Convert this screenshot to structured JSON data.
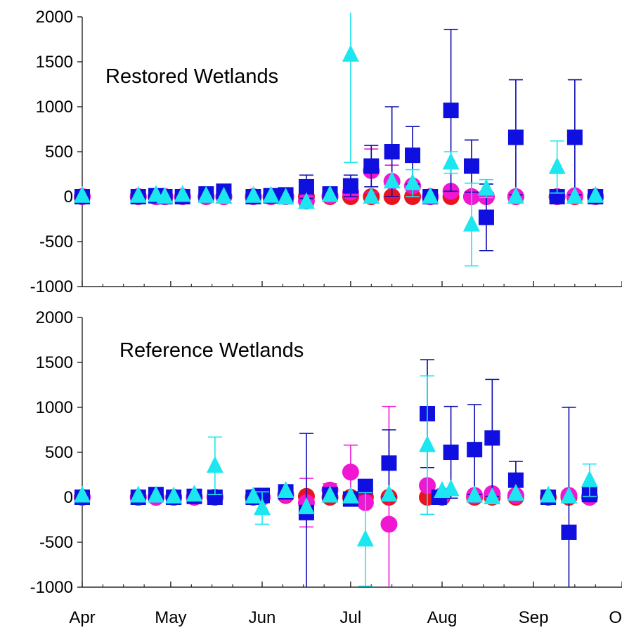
{
  "chart_data": [
    {
      "type": "scatter",
      "title": "Restored Wetlands",
      "xlabel": "",
      "ylabel": "",
      "ylim": [
        -1000,
        2000
      ],
      "yticks": [
        -1000,
        -500,
        0,
        500,
        1000,
        1500,
        2000
      ],
      "xlim": [
        "Apr",
        "Oct"
      ],
      "grid": false,
      "series": [
        {
          "color": "#e8141e",
          "marker": "circle",
          "points": [
            {
              "x": "Apr 1",
              "y": 0
            },
            {
              "x": "Apr 20",
              "y": 0
            },
            {
              "x": "Apr 26",
              "y": 0
            },
            {
              "x": "Apr 29",
              "y": 0
            },
            {
              "x": "May 5",
              "y": 0
            },
            {
              "x": "May 13",
              "y": 0
            },
            {
              "x": "May 19",
              "y": 0
            },
            {
              "x": "May 29",
              "y": 0
            },
            {
              "x": "Jun 4",
              "y": 0
            },
            {
              "x": "Jun 9",
              "y": 0
            },
            {
              "x": "Jun 16",
              "y": 0
            },
            {
              "x": "Jun 24",
              "y": 0
            },
            {
              "x": "Jul 1",
              "y": 0
            },
            {
              "x": "Jul 8",
              "y": 0
            },
            {
              "x": "Jul 15",
              "y": 0
            },
            {
              "x": "Jul 22",
              "y": 0
            },
            {
              "x": "Jul 28",
              "y": 0
            },
            {
              "x": "Aug 4",
              "y": 0
            },
            {
              "x": "Aug 11",
              "y": 0
            },
            {
              "x": "Aug 16",
              "y": 0
            },
            {
              "x": "Aug 26",
              "y": 0
            },
            {
              "x": "Sep 9",
              "y": 0
            },
            {
              "x": "Sep 15",
              "y": 0
            },
            {
              "x": "Sep 22",
              "y": 0
            }
          ]
        },
        {
          "color": "#f016d2",
          "marker": "circle",
          "points": [
            {
              "x": "Apr 1",
              "y": 0
            },
            {
              "x": "Apr 20",
              "y": 0
            },
            {
              "x": "Apr 26",
              "y": 0
            },
            {
              "x": "Apr 29",
              "y": 0
            },
            {
              "x": "May 5",
              "y": 0
            },
            {
              "x": "May 13",
              "y": 0
            },
            {
              "x": "May 19",
              "y": 0
            },
            {
              "x": "May 29",
              "y": 0
            },
            {
              "x": "Jun 4",
              "y": 0
            },
            {
              "x": "Jun 9",
              "y": 0
            },
            {
              "x": "Jun 16",
              "y": -50
            },
            {
              "x": "Jun 24",
              "y": 10
            },
            {
              "x": "Jul 1",
              "y": 50
            },
            {
              "x": "Jul 8",
              "y": 290,
              "err": 240
            },
            {
              "x": "Jul 15",
              "y": 170,
              "err": 180
            },
            {
              "x": "Jul 22",
              "y": 120
            },
            {
              "x": "Jul 28",
              "y": 0
            },
            {
              "x": "Aug 4",
              "y": 60
            },
            {
              "x": "Aug 11",
              "y": 0
            },
            {
              "x": "Aug 16",
              "y": 0
            },
            {
              "x": "Aug 26",
              "y": 0
            },
            {
              "x": "Sep 9",
              "y": 0
            },
            {
              "x": "Sep 15",
              "y": 10
            },
            {
              "x": "Sep 22",
              "y": 0
            }
          ]
        },
        {
          "color": "#0f0fe0",
          "marker": "square",
          "points": [
            {
              "x": "Apr 1",
              "y": 0
            },
            {
              "x": "Apr 20",
              "y": 0
            },
            {
              "x": "Apr 26",
              "y": 10
            },
            {
              "x": "Apr 29",
              "y": 0
            },
            {
              "x": "May 5",
              "y": 0
            },
            {
              "x": "May 13",
              "y": 30
            },
            {
              "x": "May 19",
              "y": 60
            },
            {
              "x": "May 29",
              "y": 0
            },
            {
              "x": "Jun 4",
              "y": 10
            },
            {
              "x": "Jun 9",
              "y": 20
            },
            {
              "x": "Jun 16",
              "y": 110,
              "err": 130
            },
            {
              "x": "Jun 24",
              "y": 30
            },
            {
              "x": "Jul 1",
              "y": 120,
              "err": 120
            },
            {
              "x": "Jul 8",
              "y": 340,
              "err": 230
            },
            {
              "x": "Jul 15",
              "y": 500,
              "err": 500
            },
            {
              "x": "Jul 22",
              "y": 460,
              "err": 320
            },
            {
              "x": "Jul 28",
              "y": 0
            },
            {
              "x": "Aug 4",
              "y": 960,
              "err": 900
            },
            {
              "x": "Aug 11",
              "y": 340,
              "err": 290
            },
            {
              "x": "Aug 16",
              "y": -230,
              "err": 370
            },
            {
              "x": "Aug 26",
              "y": 660,
              "err": 640
            },
            {
              "x": "Sep 9",
              "y": 0
            },
            {
              "x": "Sep 15",
              "y": 660,
              "err": 640
            },
            {
              "x": "Sep 22",
              "y": 0
            }
          ]
        },
        {
          "color": "#1ce6f0",
          "marker": "triangle",
          "points": [
            {
              "x": "Apr 1",
              "y": 10
            },
            {
              "x": "Apr 20",
              "y": 10
            },
            {
              "x": "Apr 26",
              "y": 20
            },
            {
              "x": "Apr 29",
              "y": 0
            },
            {
              "x": "May 5",
              "y": 20
            },
            {
              "x": "May 13",
              "y": 10
            },
            {
              "x": "May 19",
              "y": 0
            },
            {
              "x": "May 29",
              "y": 10
            },
            {
              "x": "Jun 4",
              "y": 10
            },
            {
              "x": "Jun 9",
              "y": -10
            },
            {
              "x": "Jun 16",
              "y": -60
            },
            {
              "x": "Jun 24",
              "y": 20
            },
            {
              "x": "Jul 1",
              "y": 1580,
              "err": 1200
            },
            {
              "x": "Jul 8",
              "y": 0
            },
            {
              "x": "Jul 15",
              "y": 170
            },
            {
              "x": "Jul 22",
              "y": 150,
              "err": 150
            },
            {
              "x": "Jul 28",
              "y": 0
            },
            {
              "x": "Aug 4",
              "y": 380,
              "err": 120
            },
            {
              "x": "Aug 11",
              "y": -310,
              "err": 460
            },
            {
              "x": "Aug 16",
              "y": 90,
              "err": 100
            },
            {
              "x": "Aug 26",
              "y": 0
            },
            {
              "x": "Sep 9",
              "y": 330,
              "err": 290
            },
            {
              "x": "Sep 15",
              "y": 0
            },
            {
              "x": "Sep 22",
              "y": 10
            }
          ]
        }
      ]
    },
    {
      "type": "scatter",
      "title": "Reference Wetlands",
      "xlabel": "",
      "ylabel": "",
      "ylim": [
        -1000,
        2000
      ],
      "yticks": [
        -1000,
        -500,
        0,
        500,
        1000,
        1500,
        2000
      ],
      "xlim": [
        "Apr",
        "Oct"
      ],
      "xticks": [
        "Apr",
        "May",
        "Jun",
        "Jul",
        "Aug",
        "Sep",
        "Oct"
      ],
      "grid": false,
      "series": [
        {
          "color": "#e8141e",
          "marker": "circle",
          "points": [
            {
              "x": "Apr 1",
              "y": 0
            },
            {
              "x": "Apr 20",
              "y": 0
            },
            {
              "x": "Apr 26",
              "y": 0
            },
            {
              "x": "May 2",
              "y": 0
            },
            {
              "x": "May 9",
              "y": 0
            },
            {
              "x": "May 16",
              "y": 0
            },
            {
              "x": "May 29",
              "y": 0
            },
            {
              "x": "Jun 1",
              "y": 0
            },
            {
              "x": "Jun 9",
              "y": 20
            },
            {
              "x": "Jun 16",
              "y": 10
            },
            {
              "x": "Jun 24",
              "y": 0
            },
            {
              "x": "Jul 1",
              "y": 0
            },
            {
              "x": "Jul 6",
              "y": 0
            },
            {
              "x": "Jul 14",
              "y": 0
            },
            {
              "x": "Jul 27",
              "y": 0
            },
            {
              "x": "Aug 1",
              "y": 0
            },
            {
              "x": "Aug 12",
              "y": 0
            },
            {
              "x": "Aug 18",
              "y": 0
            },
            {
              "x": "Aug 26",
              "y": 0
            },
            {
              "x": "Sep 6",
              "y": 0
            },
            {
              "x": "Sep 13",
              "y": 0
            },
            {
              "x": "Sep 20",
              "y": 0
            }
          ]
        },
        {
          "color": "#f016d2",
          "marker": "circle",
          "points": [
            {
              "x": "Apr 1",
              "y": 0
            },
            {
              "x": "Apr 20",
              "y": 0
            },
            {
              "x": "Apr 26",
              "y": 0
            },
            {
              "x": "May 2",
              "y": 0
            },
            {
              "x": "May 9",
              "y": 0
            },
            {
              "x": "May 16",
              "y": 0
            },
            {
              "x": "Jun 1",
              "y": 0
            },
            {
              "x": "Jun 9",
              "y": 30
            },
            {
              "x": "Jun 16",
              "y": -60,
              "err": 270
            },
            {
              "x": "Jun 24",
              "y": 80,
              "err": 70
            },
            {
              "x": "Jul 1",
              "y": 280,
              "err": 300
            },
            {
              "x": "Jul 6",
              "y": -60
            },
            {
              "x": "Jul 14",
              "y": -300,
              "err": 1310
            },
            {
              "x": "Jul 27",
              "y": 130
            },
            {
              "x": "Aug 1",
              "y": 20
            },
            {
              "x": "Aug 12",
              "y": 20
            },
            {
              "x": "Aug 18",
              "y": 40
            },
            {
              "x": "Aug 26",
              "y": 20
            },
            {
              "x": "Sep 13",
              "y": 20
            },
            {
              "x": "Sep 20",
              "y": 0
            }
          ]
        },
        {
          "color": "#0f0fe0",
          "marker": "square",
          "points": [
            {
              "x": "Apr 1",
              "y": 0
            },
            {
              "x": "Apr 20",
              "y": 0
            },
            {
              "x": "Apr 26",
              "y": 30
            },
            {
              "x": "May 2",
              "y": 0
            },
            {
              "x": "May 9",
              "y": 10
            },
            {
              "x": "May 16",
              "y": 0
            },
            {
              "x": "May 29",
              "y": 0
            },
            {
              "x": "Jun 1",
              "y": 20
            },
            {
              "x": "Jun 9",
              "y": 60
            },
            {
              "x": "Jun 16",
              "y": -170,
              "err": 880
            },
            {
              "x": "Jun 24",
              "y": 30
            },
            {
              "x": "Jul 1",
              "y": -20
            },
            {
              "x": "Jul 6",
              "y": 120
            },
            {
              "x": "Jul 14",
              "y": 380,
              "err": 370
            },
            {
              "x": "Jul 27",
              "y": 930,
              "err": 600
            },
            {
              "x": "Jul 31",
              "y": 0
            },
            {
              "x": "Aug 4",
              "y": 500,
              "err": 510
            },
            {
              "x": "Aug 12",
              "y": 530,
              "err": 500
            },
            {
              "x": "Aug 18",
              "y": 660,
              "err": 650
            },
            {
              "x": "Aug 26",
              "y": 190,
              "err": 210
            },
            {
              "x": "Sep 6",
              "y": 0
            },
            {
              "x": "Sep 13",
              "y": -390,
              "err": 1390
            },
            {
              "x": "Sep 20",
              "y": 30
            }
          ]
        },
        {
          "color": "#1ce6f0",
          "marker": "triangle",
          "points": [
            {
              "x": "Apr 1",
              "y": 20
            },
            {
              "x": "Apr 20",
              "y": 20
            },
            {
              "x": "Apr 26",
              "y": 20
            },
            {
              "x": "May 2",
              "y": 10
            },
            {
              "x": "May 9",
              "y": 30
            },
            {
              "x": "May 16",
              "y": 350,
              "err": 320
            },
            {
              "x": "May 29",
              "y": 10
            },
            {
              "x": "Jun 1",
              "y": -120,
              "err": 180
            },
            {
              "x": "Jun 9",
              "y": 70
            },
            {
              "x": "Jun 16",
              "y": -110
            },
            {
              "x": "Jun 24",
              "y": 20
            },
            {
              "x": "Jul 1",
              "y": 10
            },
            {
              "x": "Jul 6",
              "y": -470,
              "err": 520
            },
            {
              "x": "Jul 14",
              "y": 30
            },
            {
              "x": "Jul 27",
              "y": 580,
              "err": 770
            },
            {
              "x": "Aug 1",
              "y": 70
            },
            {
              "x": "Aug 4",
              "y": 90
            },
            {
              "x": "Aug 12",
              "y": 20
            },
            {
              "x": "Aug 18",
              "y": 0
            },
            {
              "x": "Aug 26",
              "y": 40
            },
            {
              "x": "Sep 6",
              "y": 20
            },
            {
              "x": "Sep 13",
              "y": 10
            },
            {
              "x": "Sep 20",
              "y": 190,
              "err": 180
            }
          ]
        }
      ]
    }
  ]
}
